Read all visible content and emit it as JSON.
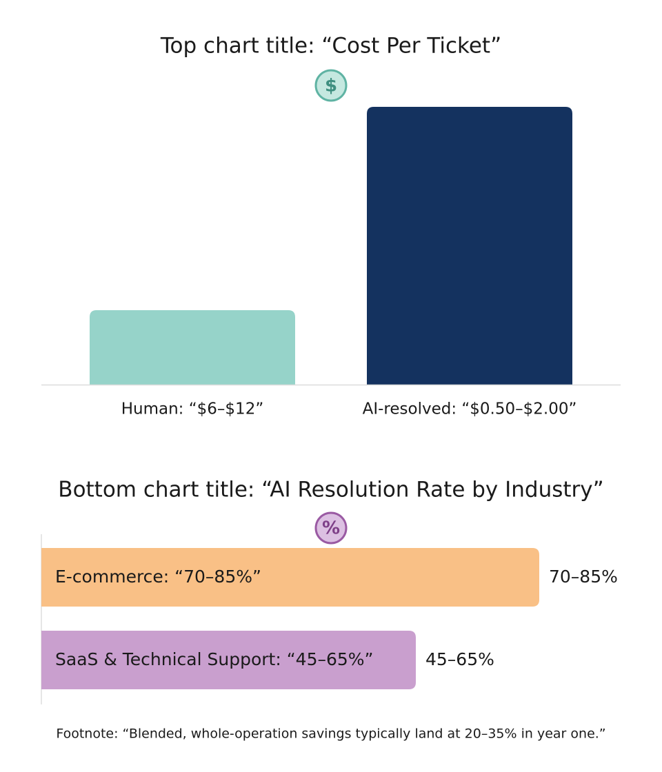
{
  "top_chart": {
    "title": "Top chart title: “Cost Per Ticket”",
    "icon": "$",
    "categories": [
      "Human: “$6–$12”",
      "AI-resolved: “$0.50–$2.00”"
    ]
  },
  "bottom_chart": {
    "title": "Bottom chart title: “AI Resolution Rate by Industry”",
    "icon": "%",
    "bars": [
      {
        "label": "E-commerce: “70–85%”",
        "value_label": "70–85%"
      },
      {
        "label": "SaaS & Technical Support: “45–65%”",
        "value_label": "45–65%"
      }
    ]
  },
  "footnote": "Footnote: “Blended, whole-operation savings typically land at 20–35% in year one.”"
}
